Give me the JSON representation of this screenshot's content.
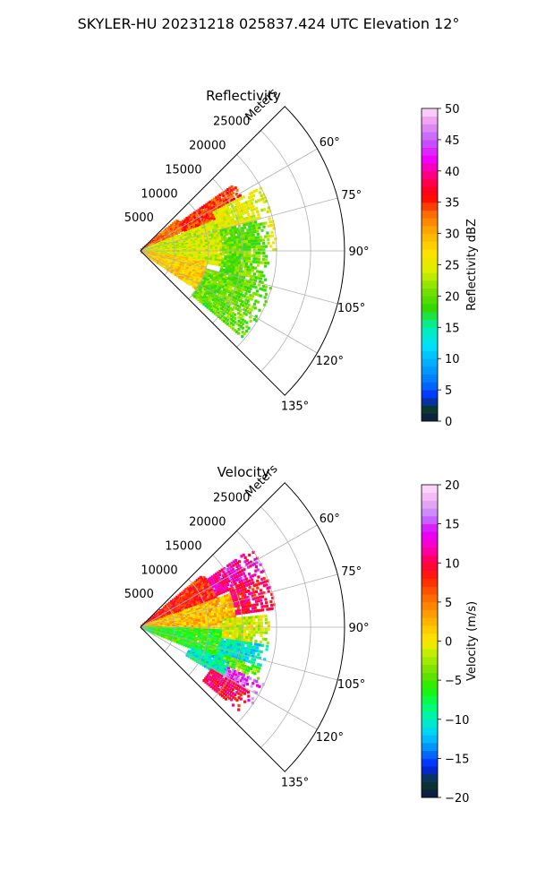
{
  "suptitle": "SKYLER-HU  20231218  025837.424 UTC Elevation 12°",
  "chart_data": [
    {
      "type": "heatmap",
      "subtype": "polar-sector-ppi",
      "title": "Reflectivity",
      "radial_axis_label": "Meters",
      "radial_ticks": [
        5000,
        10000,
        15000,
        20000,
        25000
      ],
      "radial_tick_labels": [
        "5000",
        "10000",
        "15000",
        "20000",
        "25000"
      ],
      "radial_max": 30000,
      "azimuth_range_deg": [
        45,
        135
      ],
      "azimuth_ticks": [
        60,
        75,
        90,
        105,
        120,
        135
      ],
      "azimuth_tick_labels": [
        "60°",
        "75°",
        "90°",
        "105°",
        "120°",
        "135°"
      ],
      "grid": true,
      "colorbar": {
        "label": "Reflectivity dBZ",
        "range": [
          0,
          50
        ],
        "ticks": [
          0,
          5,
          10,
          15,
          20,
          25,
          30,
          35,
          40,
          45,
          50
        ],
        "tick_labels": [
          "0",
          "5",
          "10",
          "15",
          "20",
          "25",
          "30",
          "35",
          "40",
          "45",
          "50"
        ]
      },
      "colormap_stops": [
        [
          0,
          "#0c1a4a"
        ],
        [
          2,
          "#0a3a2a"
        ],
        [
          4,
          "#0030ff"
        ],
        [
          6,
          "#0070ff"
        ],
        [
          9,
          "#00a8ff"
        ],
        [
          12,
          "#00e0ff"
        ],
        [
          15,
          "#00f0b0"
        ],
        [
          18,
          "#30d800"
        ],
        [
          21,
          "#7ae000"
        ],
        [
          24,
          "#d8f000"
        ],
        [
          27,
          "#ffe000"
        ],
        [
          30,
          "#ffb000"
        ],
        [
          33,
          "#ff7000"
        ],
        [
          36,
          "#ff0000"
        ],
        [
          39,
          "#ff0070"
        ],
        [
          42,
          "#f000ff"
        ],
        [
          45,
          "#c060ff"
        ],
        [
          48,
          "#f0a0f0"
        ],
        [
          50,
          "#ffe0ff"
        ]
      ],
      "field_regions": [
        {
          "az": [
            50,
            65
          ],
          "r": [
            0,
            7000
          ],
          "value": 33
        },
        {
          "az": [
            55,
            68
          ],
          "r": [
            7000,
            17000
          ],
          "value": 35
        },
        {
          "az": [
            62,
            90
          ],
          "r": [
            12000,
            20000
          ],
          "value": 25
        },
        {
          "az": [
            68,
            100
          ],
          "r": [
            0,
            12000
          ],
          "value": 24
        },
        {
          "az": [
            75,
            110
          ],
          "r": [
            12000,
            19000
          ],
          "value": 20
        },
        {
          "az": [
            100,
            125
          ],
          "r": [
            0,
            10000
          ],
          "value": 28
        },
        {
          "az": [
            105,
            130
          ],
          "r": [
            10000,
            20000
          ],
          "value": 20
        }
      ]
    },
    {
      "type": "heatmap",
      "subtype": "polar-sector-ppi",
      "title": "Velocity",
      "radial_axis_label": "Meters",
      "radial_ticks": [
        5000,
        10000,
        15000,
        20000,
        25000
      ],
      "radial_tick_labels": [
        "5000",
        "10000",
        "15000",
        "20000",
        "25000"
      ],
      "radial_max": 30000,
      "azimuth_range_deg": [
        45,
        135
      ],
      "azimuth_ticks": [
        60,
        75,
        90,
        105,
        120,
        135
      ],
      "azimuth_tick_labels": [
        "60°",
        "75°",
        "90°",
        "105°",
        "120°",
        "135°"
      ],
      "grid": true,
      "colorbar": {
        "label": "Velocity (m/s)",
        "range": [
          -20,
          20
        ],
        "ticks": [
          -20,
          -15,
          -10,
          -5,
          0,
          5,
          10,
          15,
          20
        ],
        "tick_labels": [
          "−20",
          "−15",
          "−10",
          "−5",
          "0",
          "5",
          "10",
          "15",
          "20"
        ]
      },
      "colormap_stops": [
        [
          -20,
          "#0c1a4a"
        ],
        [
          -18,
          "#0a3a2a"
        ],
        [
          -16,
          "#0020ff"
        ],
        [
          -14,
          "#0080ff"
        ],
        [
          -12,
          "#00d0ff"
        ],
        [
          -10,
          "#00f0c0"
        ],
        [
          -8,
          "#00ff60"
        ],
        [
          -6,
          "#20f000"
        ],
        [
          -4,
          "#70e000"
        ],
        [
          -2,
          "#b0f000"
        ],
        [
          0,
          "#ffe800"
        ],
        [
          2,
          "#ffc000"
        ],
        [
          4,
          "#ff9000"
        ],
        [
          6,
          "#ff6000"
        ],
        [
          8,
          "#ff2000"
        ],
        [
          10,
          "#ff0040"
        ],
        [
          12,
          "#ff00c0"
        ],
        [
          14,
          "#e000ff"
        ],
        [
          16,
          "#c080ff"
        ],
        [
          18,
          "#f0b0f0"
        ],
        [
          20,
          "#ffe0ff"
        ]
      ],
      "field_regions": [
        {
          "az": [
            50,
            70
          ],
          "r": [
            0,
            12000
          ],
          "value": 8
        },
        {
          "az": [
            55,
            68
          ],
          "r": [
            12000,
            20000
          ],
          "value": 12
        },
        {
          "az": [
            66,
            82
          ],
          "r": [
            14000,
            20000
          ],
          "value": 10
        },
        {
          "az": [
            70,
            95
          ],
          "r": [
            0,
            14000
          ],
          "value": 2
        },
        {
          "az": [
            85,
            100
          ],
          "r": [
            12000,
            19000
          ],
          "value": -1
        },
        {
          "az": [
            92,
            112
          ],
          "r": [
            0,
            12000
          ],
          "value": -6
        },
        {
          "az": [
            98,
            112
          ],
          "r": [
            12000,
            19000
          ],
          "value": -10
        },
        {
          "az": [
            108,
            118
          ],
          "r": [
            13000,
            19000
          ],
          "value": -4
        },
        {
          "az": [
            112,
            122
          ],
          "r": [
            8000,
            14000
          ],
          "value": -10
        },
        {
          "az": [
            115,
            124
          ],
          "r": [
            14000,
            20000
          ],
          "value": 15
        },
        {
          "az": [
            120,
            130
          ],
          "r": [
            12000,
            19000
          ],
          "value": 10
        }
      ]
    }
  ]
}
